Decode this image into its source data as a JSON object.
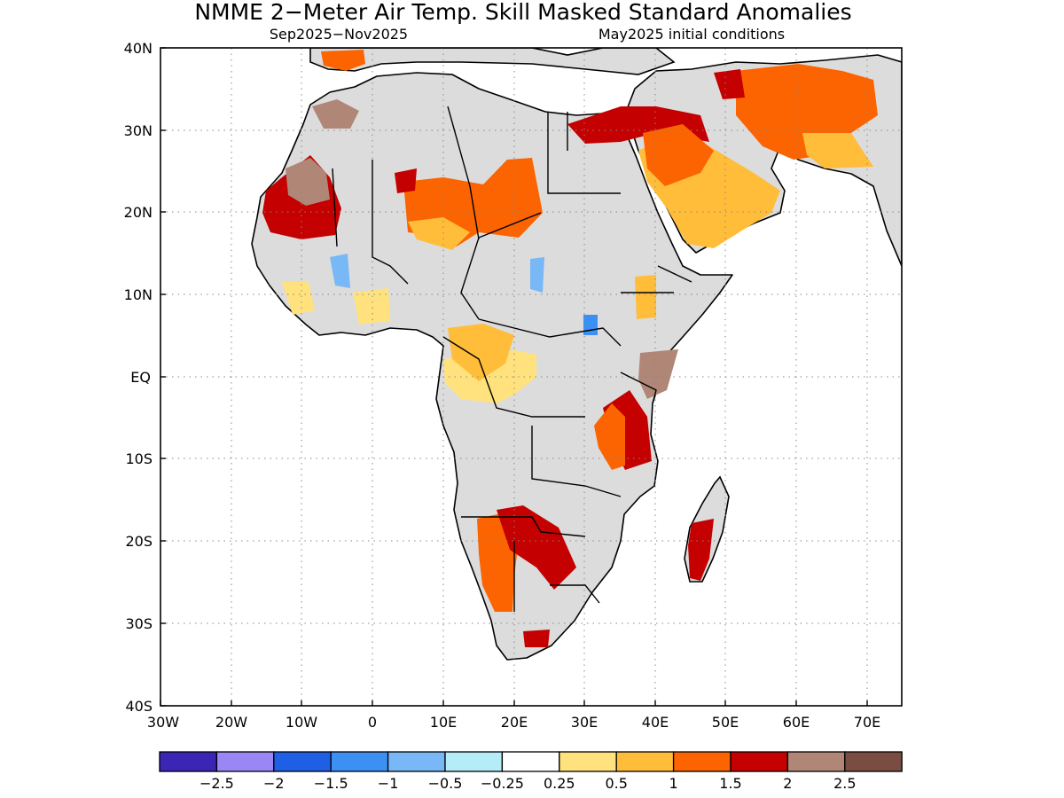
{
  "title": "NMME 2−Meter Air Temp. Skill Masked Standard Anomalies",
  "subtitle_left": "Sep2025−Nov2025",
  "subtitle_right": "May2025 initial conditions",
  "axes": {
    "lon_ticks": [
      "30W",
      "20W",
      "10W",
      "0",
      "10E",
      "20E",
      "30E",
      "40E",
      "50E",
      "60E",
      "70E"
    ],
    "lat_ticks": [
      "40N",
      "30N",
      "20N",
      "10N",
      "EQ",
      "10S",
      "20S",
      "30S",
      "40S"
    ],
    "lon_range": [
      -30,
      75
    ],
    "lat_range": [
      -40,
      40
    ],
    "grid": true
  },
  "colorbar": {
    "labels": [
      "−2.5",
      "−2",
      "−1.5",
      "−1",
      "−0.5",
      "−0.25",
      "0.25",
      "0.5",
      "1",
      "1.5",
      "2",
      "2.5"
    ],
    "colors": [
      "#3a25b4",
      "#9b86f5",
      "#1f5fe6",
      "#3c8ff3",
      "#78b8f7",
      "#b4ecf8",
      "#ffffff",
      "#ffe27d",
      "#ffbd3a",
      "#fb6400",
      "#c40000",
      "#b08677",
      "#7a4d42"
    ]
  },
  "map_colors": {
    "masked": "#dcdcdc",
    "ocean": "#ffffff",
    "coast": "#000000"
  },
  "anomaly_regions": [
    {
      "name": "western-sahara-anomaly",
      "category": "1.5 to 2",
      "color": "#c40000"
    },
    {
      "name": "central-sahel-anomaly",
      "category": "1 to 1.5",
      "color": "#fb6400"
    },
    {
      "name": "arabian-peninsula-anomaly",
      "category": "0.5 to 1",
      "color": "#ffbd3a"
    },
    {
      "name": "iran-anomaly",
      "category": "1 to 1.5",
      "color": "#fb6400"
    },
    {
      "name": "east-africa-anomaly",
      "category": "1.5 to 2",
      "color": "#c40000"
    },
    {
      "name": "southern-africa-anomaly",
      "category": "1 to 1.5",
      "color": "#fb6400"
    },
    {
      "name": "madagascar-anomaly",
      "category": "1.5 to 2",
      "color": "#c40000"
    },
    {
      "name": "congo-basin-anomaly",
      "category": "0.25 to 0.5",
      "color": "#ffe27d"
    }
  ]
}
